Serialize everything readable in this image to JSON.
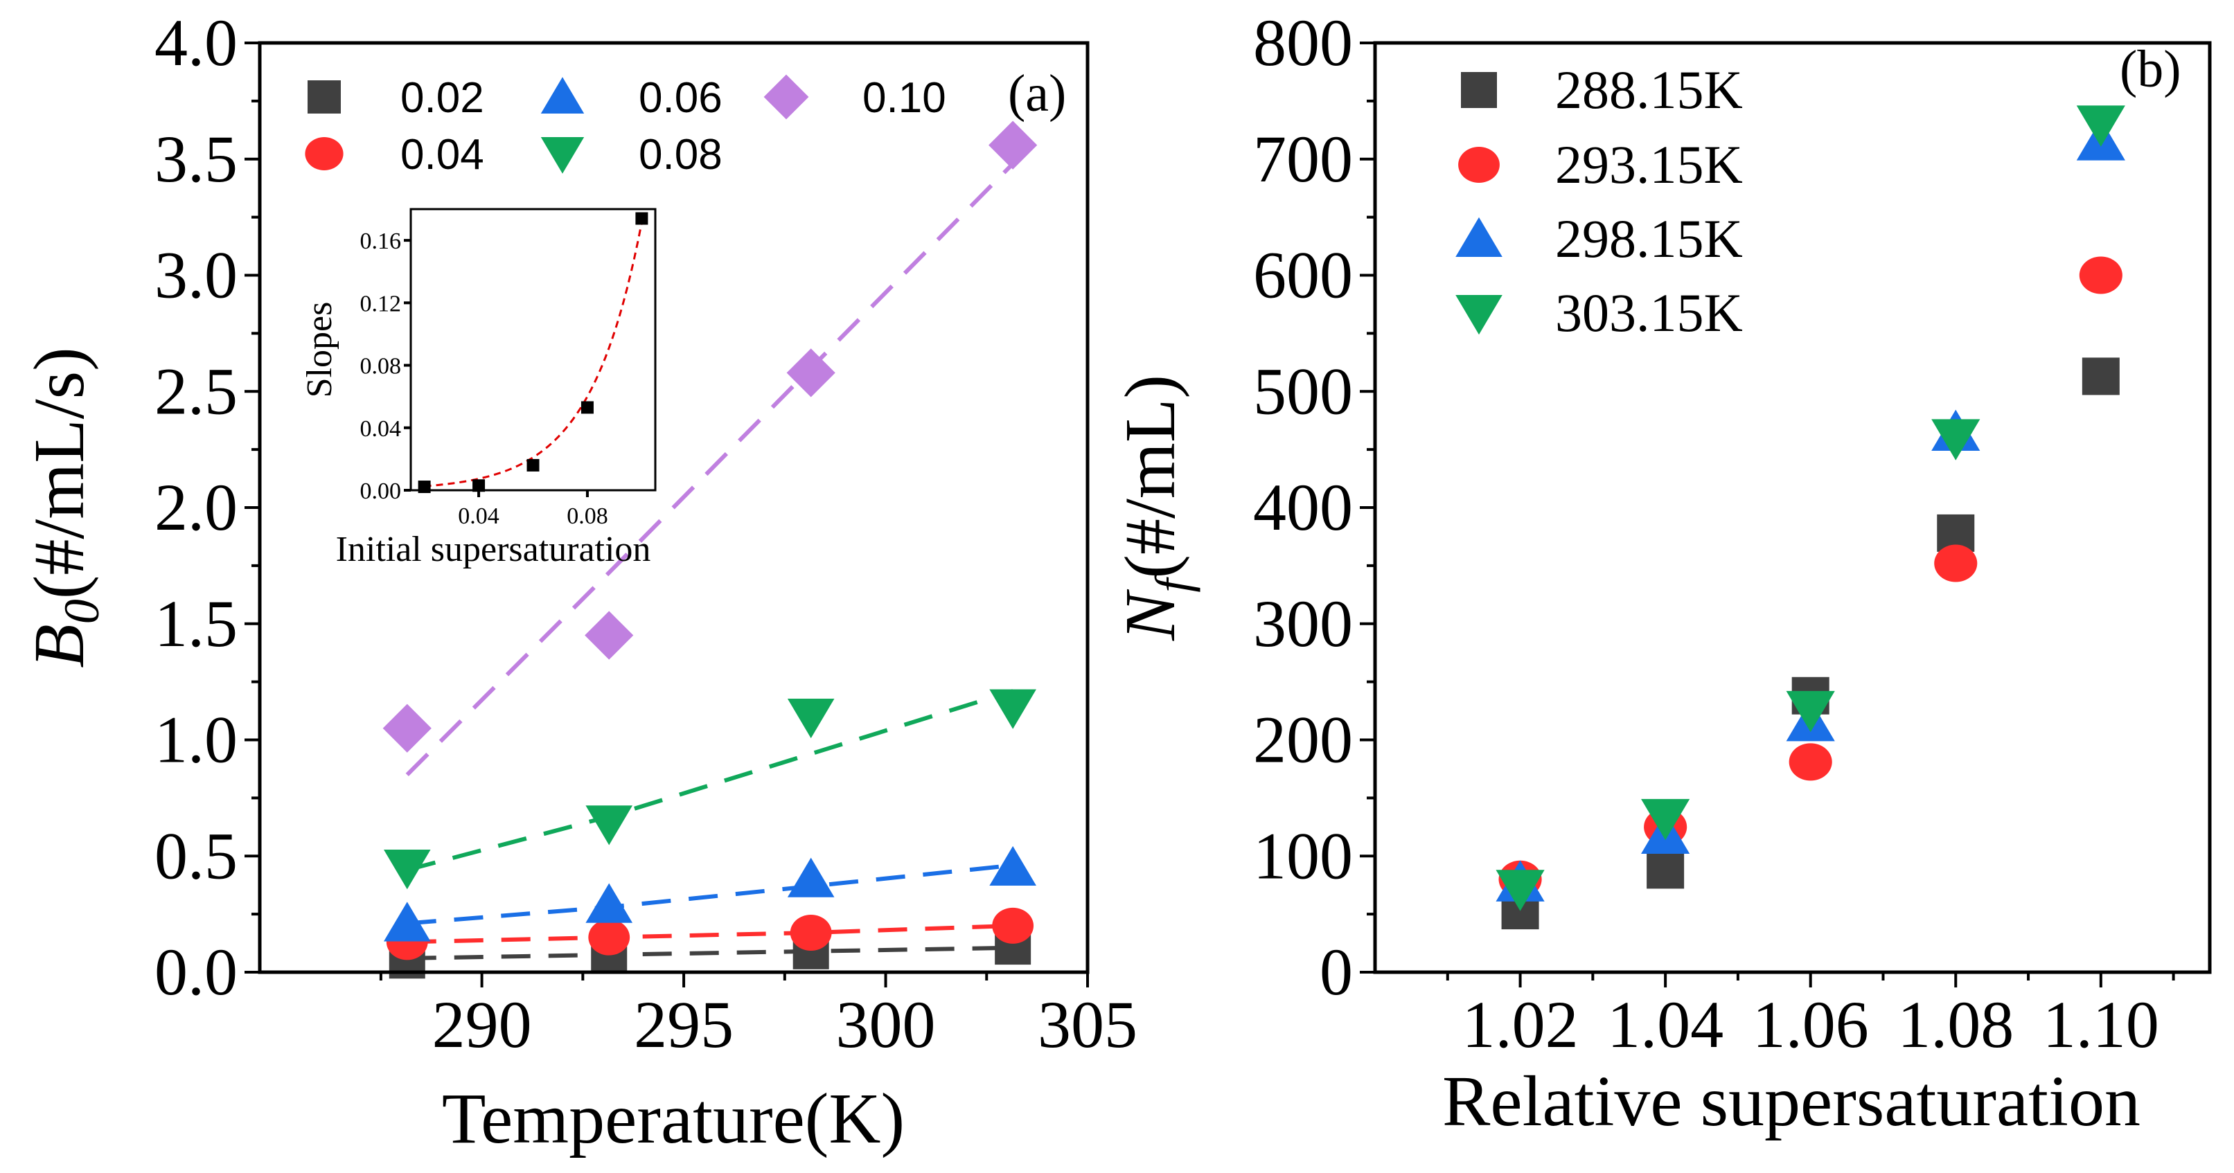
{
  "colors": {
    "c0.02": "#404040",
    "c0.04": "#ff2d2d",
    "c0.06": "#1a6fe6",
    "c0.08": "#10a85a",
    "c0.10": "#c080e0",
    "t288": "#404040",
    "t293": "#ff2d2d",
    "t298": "#1a6fe6",
    "t303": "#10a85a",
    "fit": "#e00000"
  },
  "chart_data": [
    {
      "panel": "(a)",
      "type": "scatter",
      "title": "",
      "xlabel": "Temperature(K)",
      "ylabel": "B",
      "ylabel_sub": "0",
      "ylabel_unit": "(#/mL/s)",
      "xlim": [
        284.5,
        305
      ],
      "ylim": [
        0,
        4
      ],
      "xticks": [
        290,
        295,
        300,
        305
      ],
      "yticks": [
        0.0,
        0.5,
        1.0,
        1.5,
        2.0,
        2.5,
        3.0,
        3.5,
        4.0
      ],
      "ytick_labels": [
        "0.0",
        "0.5",
        "1.0",
        "1.5",
        "2.0",
        "2.5",
        "3.0",
        "3.5",
        "4.0"
      ],
      "x": [
        288.15,
        293.15,
        298.15,
        303.15
      ],
      "series": [
        {
          "name": "0.02",
          "marker": "square",
          "color_key": "c0.02",
          "values": [
            0.05,
            0.07,
            0.09,
            0.11
          ],
          "fit": [
            0.06,
            0.075,
            0.09,
            0.105
          ]
        },
        {
          "name": "0.04",
          "marker": "circle",
          "color_key": "c0.04",
          "values": [
            0.13,
            0.15,
            0.17,
            0.2
          ],
          "fit": [
            0.13,
            0.15,
            0.17,
            0.2
          ]
        },
        {
          "name": "0.06",
          "marker": "triangle-up",
          "color_key": "c0.06",
          "values": [
            0.21,
            0.29,
            0.4,
            0.45
          ],
          "fit": [
            0.21,
            0.28,
            0.37,
            0.46
          ]
        },
        {
          "name": "0.08",
          "marker": "triangle-down",
          "color_key": "c0.08",
          "values": [
            0.45,
            0.64,
            1.1,
            1.14
          ],
          "fit": [
            0.44,
            0.67,
            0.94,
            1.21
          ]
        },
        {
          "name": "0.10",
          "marker": "diamond",
          "color_key": "c0.10",
          "values": [
            1.05,
            1.45,
            2.58,
            3.56
          ],
          "fit": [
            0.85,
            1.72,
            2.6,
            3.48
          ]
        }
      ],
      "legend_position": "top-left",
      "inset": {
        "type": "scatter",
        "xlabel": "Initial supersaturation",
        "ylabel": "Slopes",
        "xlim": [
          0.015,
          0.105
        ],
        "ylim": [
          0,
          0.18
        ],
        "xticks": [
          0.04,
          0.08
        ],
        "xtick_labels": [
          "0.04",
          "0.08"
        ],
        "yticks": [
          0.0,
          0.04,
          0.08,
          0.12,
          0.16
        ],
        "ytick_labels": [
          "0.00",
          "0.04",
          "0.08",
          "0.12",
          "0.16"
        ],
        "x": [
          0.02,
          0.04,
          0.06,
          0.08,
          0.1
        ],
        "y": [
          0.0022,
          0.003,
          0.016,
          0.053,
          0.174
        ],
        "fit": "exponential (dashed red)"
      }
    },
    {
      "panel": "(b)",
      "type": "scatter",
      "title": "",
      "xlabel": "Relative supersaturation",
      "ylabel": "N",
      "ylabel_sub": "f",
      "ylabel_unit": "(#/mL)",
      "xlim": [
        1.0,
        1.115
      ],
      "ylim": [
        0,
        800
      ],
      "xticks": [
        1.02,
        1.04,
        1.06,
        1.08,
        1.1
      ],
      "xtick_labels": [
        "1.02",
        "1.04",
        "1.06",
        "1.08",
        "1.10"
      ],
      "yticks": [
        0,
        100,
        200,
        300,
        400,
        500,
        600,
        700,
        800
      ],
      "ytick_labels": [
        "0",
        "100",
        "200",
        "300",
        "400",
        "500",
        "600",
        "700",
        "800"
      ],
      "x": [
        1.02,
        1.04,
        1.06,
        1.08,
        1.1
      ],
      "series": [
        {
          "name": "288.15K",
          "marker": "square",
          "color_key": "t288",
          "values": [
            53,
            88,
            238,
            378,
            513
          ]
        },
        {
          "name": "293.15K",
          "marker": "circle",
          "color_key": "t293",
          "values": [
            80,
            125,
            181,
            352,
            600
          ]
        },
        {
          "name": "298.15K",
          "marker": "triangle-up",
          "color_key": "t298",
          "values": [
            77,
            118,
            215,
            465,
            715
          ]
        },
        {
          "name": "303.15K",
          "marker": "triangle-down",
          "color_key": "t303",
          "values": [
            72,
            133,
            226,
            460,
            730
          ]
        }
      ],
      "legend_position": "top-left"
    }
  ]
}
